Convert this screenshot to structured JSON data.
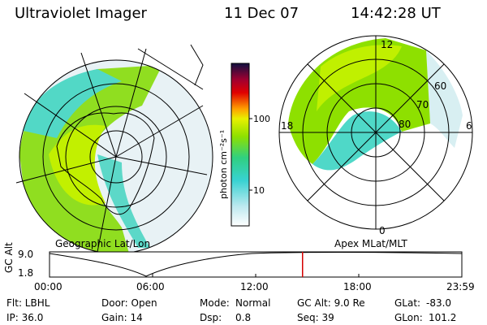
{
  "header": {
    "instrument": "Ultraviolet Imager",
    "date": "11 Dec 07",
    "time": "14:42:28 UT"
  },
  "panels": {
    "left_caption": "Geographic Lat/Lon",
    "right_caption": "Apex MLat/MLT"
  },
  "colorbar": {
    "unit_label": "photon cm⁻²s⁻¹",
    "ticks": [
      "100",
      "10"
    ]
  },
  "polar_labels": {
    "noon": "12",
    "midnight": "0",
    "dusk": "18",
    "dawn": "6",
    "mlat_60": "60",
    "mlat_70": "70",
    "mlat_80": "80"
  },
  "altitude_plot": {
    "y_title": "GC Alt",
    "y_ticks": [
      "9.0",
      "1.8"
    ],
    "x_ticks": [
      "00:00",
      "06:00",
      "12:00",
      "18:00",
      "23:59"
    ],
    "current_time_fraction": 0.6137
  },
  "info": {
    "row1": {
      "flt": "Flt: LBHL",
      "door": "Door: Open",
      "mode_label": "Mode:",
      "mode_value": "Normal",
      "gcalt": "GC Alt: 9.0 Re",
      "glat_label": "GLat:",
      "glat_value": "-83.0"
    },
    "row2": {
      "ip": "IP: 36.0",
      "gain": "Gain: 14",
      "dsp_label": "Dsp:",
      "dsp_value": "0.8",
      "seq": "Seq: 39",
      "glon_label": "GLon:",
      "glon_value": "101.2"
    }
  },
  "colors": {
    "aurora_green": "#8ee000",
    "aurora_yellowgreen": "#c8f000",
    "aurora_cyan": "#3fd6d6",
    "pale_blue": "#cfe6ee",
    "timeline_marker": "#d40000"
  }
}
